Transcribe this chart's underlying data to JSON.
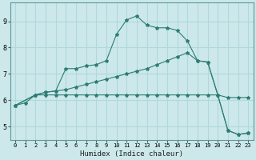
{
  "title": "",
  "xlabel": "Humidex (Indice chaleur)",
  "ylabel": "",
  "background_color": "#cce8ea",
  "line_color": "#2d7d74",
  "grid_color": "#b0d8dc",
  "xlim": [
    -0.5,
    23.5
  ],
  "ylim": [
    4.5,
    9.7
  ],
  "xticks": [
    0,
    1,
    2,
    3,
    4,
    5,
    6,
    7,
    8,
    9,
    10,
    11,
    12,
    13,
    14,
    15,
    16,
    17,
    18,
    19,
    20,
    21,
    22,
    23
  ],
  "yticks": [
    5,
    6,
    7,
    8,
    9
  ],
  "series1_x": [
    0,
    1,
    2,
    3,
    4,
    5,
    6,
    7,
    8,
    9,
    10,
    11,
    12,
    13,
    14,
    15,
    16,
    17,
    18,
    19,
    20,
    21,
    22,
    23
  ],
  "series1_y": [
    5.8,
    5.9,
    6.2,
    6.2,
    6.2,
    6.2,
    6.2,
    6.2,
    6.2,
    6.2,
    6.2,
    6.2,
    6.2,
    6.2,
    6.2,
    6.2,
    6.2,
    6.2,
    6.2,
    6.2,
    6.2,
    6.1,
    6.1,
    6.1
  ],
  "series2_x": [
    0,
    2,
    3,
    4,
    5,
    6,
    7,
    8,
    9,
    10,
    11,
    12,
    13,
    14,
    15,
    16,
    17,
    18,
    19,
    20,
    21,
    22,
    23
  ],
  "series2_y": [
    5.8,
    6.2,
    6.3,
    6.35,
    6.4,
    6.5,
    6.6,
    6.7,
    6.8,
    6.9,
    7.0,
    7.1,
    7.2,
    7.35,
    7.5,
    7.65,
    7.8,
    7.5,
    7.45,
    6.2,
    4.85,
    4.7,
    4.75
  ],
  "series3_x": [
    0,
    2,
    3,
    4,
    5,
    6,
    7,
    8,
    9,
    10,
    11,
    12,
    13,
    14,
    15,
    16,
    17,
    18,
    19,
    20,
    21,
    22,
    23
  ],
  "series3_y": [
    5.8,
    6.2,
    6.3,
    6.35,
    7.2,
    7.2,
    7.3,
    7.35,
    7.5,
    8.5,
    9.05,
    9.2,
    8.85,
    8.75,
    8.75,
    8.65,
    8.25,
    7.5,
    7.45,
    6.2,
    4.85,
    4.7,
    4.75
  ]
}
